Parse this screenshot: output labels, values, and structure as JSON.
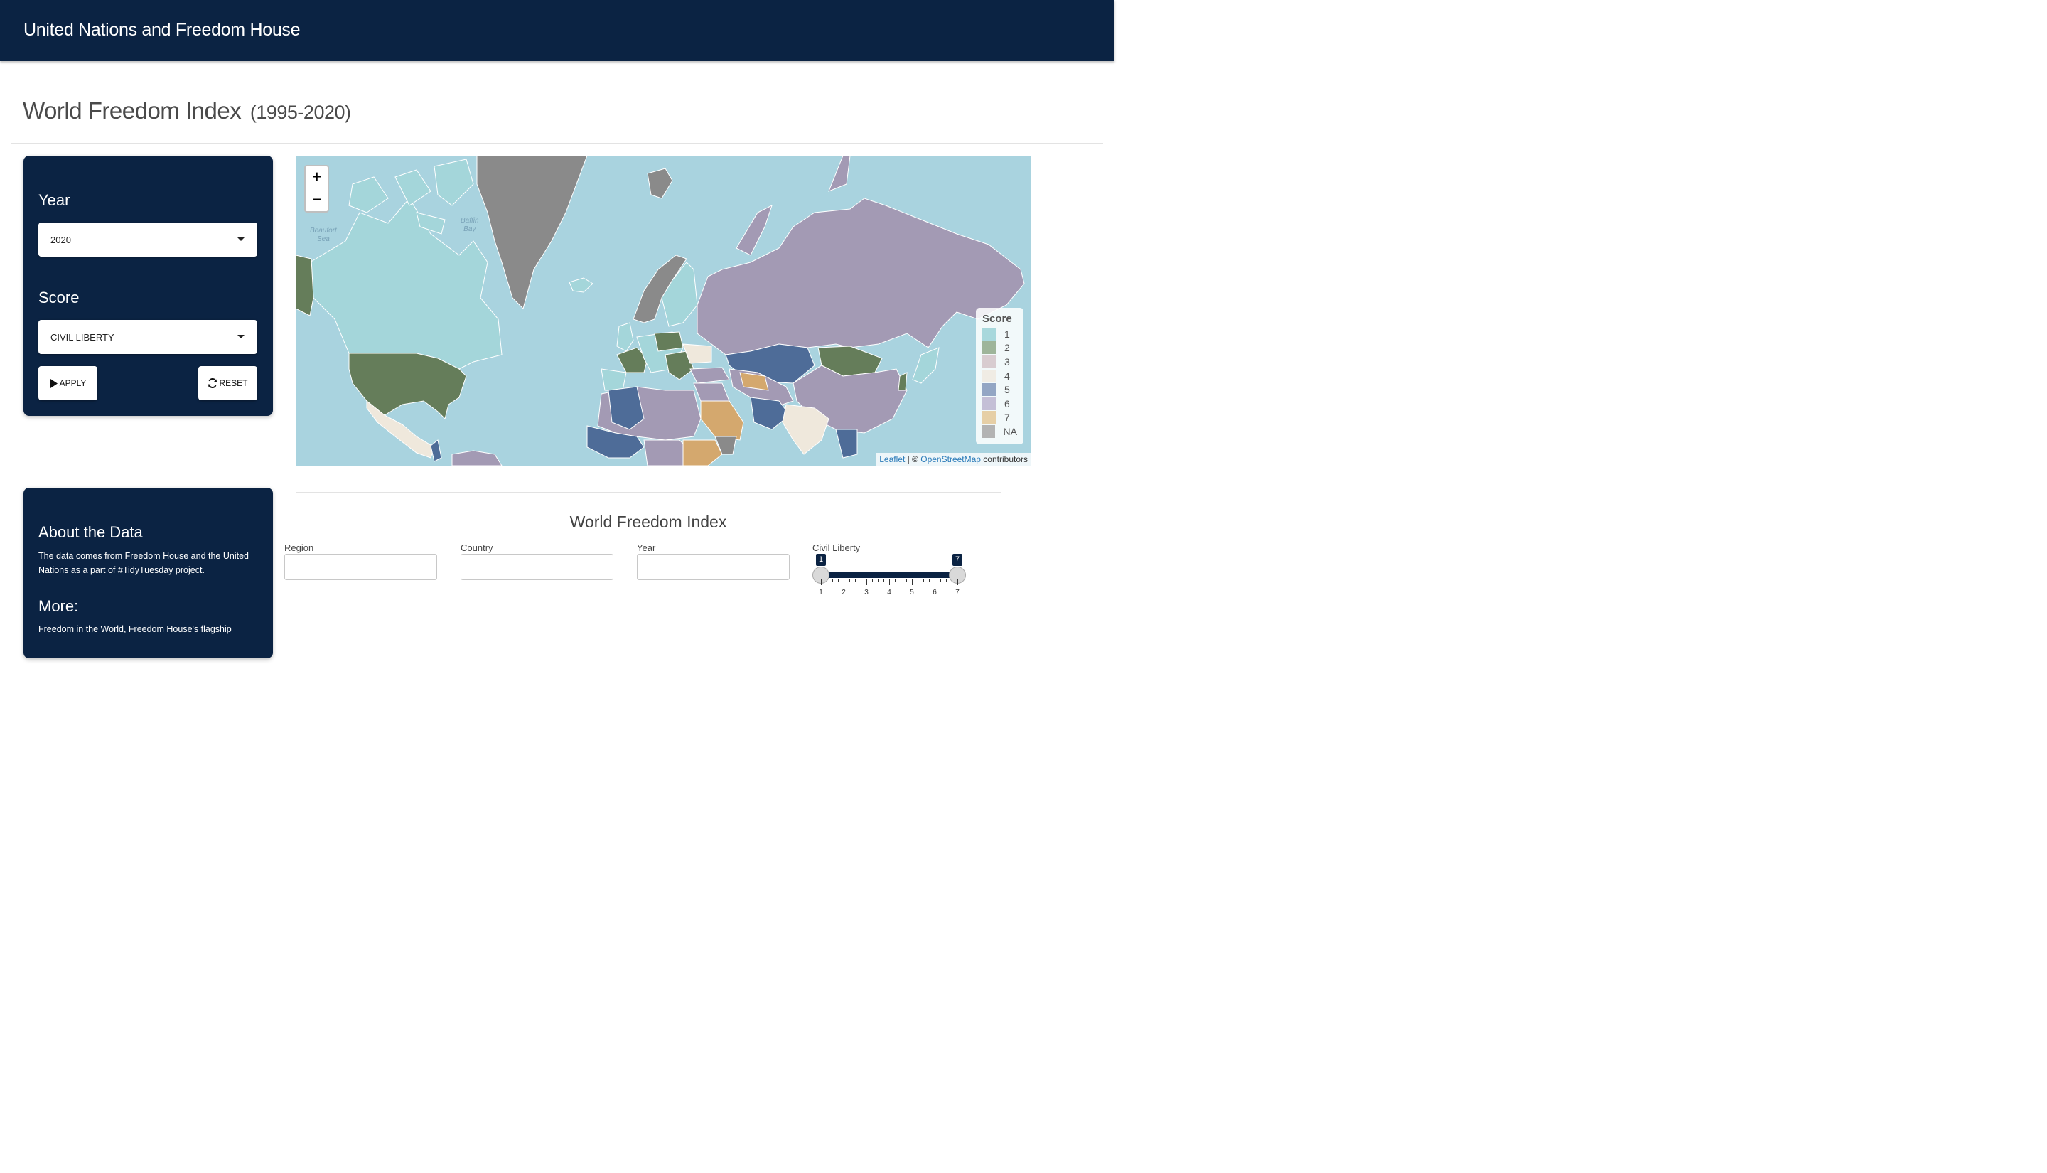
{
  "header": {
    "brand": "United Nations and Freedom House"
  },
  "page": {
    "title": "World Freedom Index",
    "title_years": "(1995-2020)"
  },
  "controls": {
    "year_label": "Year",
    "year_value": "2020",
    "score_label": "Score",
    "score_value": "CIVIL LIBERTY",
    "apply_label": "APPLY",
    "reset_label": "RESET"
  },
  "about": {
    "heading": "About the Data",
    "text": "The data comes from Freedom House and the United Nations as a part of #TidyTuesday project.",
    "more_heading": "More:",
    "more_text": "Freedom in the World, Freedom House's flagship"
  },
  "map": {
    "zoom_in": "+",
    "zoom_out": "−",
    "labels": {
      "beaufort": "Beaufort",
      "beaufort2": "Sea",
      "baffin": "Baffin",
      "baffin2": "Bay"
    },
    "legend": {
      "title": "Score",
      "items": [
        {
          "label": "1",
          "color": "#a8d8dc"
        },
        {
          "label": "2",
          "color": "#9eb59a"
        },
        {
          "label": "3",
          "color": "#d8ccd0"
        },
        {
          "label": "4",
          "color": "#f0ece4"
        },
        {
          "label": "5",
          "color": "#93a6c4"
        },
        {
          "label": "6",
          "color": "#c4bfd6"
        },
        {
          "label": "7",
          "color": "#e6cfa6"
        },
        {
          "label": "NA",
          "color": "#b3b3b3"
        }
      ]
    },
    "attribution": {
      "leaflet": "Leaflet",
      "sep": " | © ",
      "osm": "OpenStreetMap",
      "rest": " contributors"
    }
  },
  "table": {
    "title": "World Freedom Index",
    "filters": {
      "region": "Region",
      "country": "Country",
      "year": "Year",
      "civil_liberty": "Civil Liberty"
    },
    "slider": {
      "min": 1,
      "max": 7,
      "low": "1",
      "high": "7",
      "ticks": [
        "1",
        "2",
        "3",
        "4",
        "5",
        "6",
        "7"
      ]
    }
  }
}
